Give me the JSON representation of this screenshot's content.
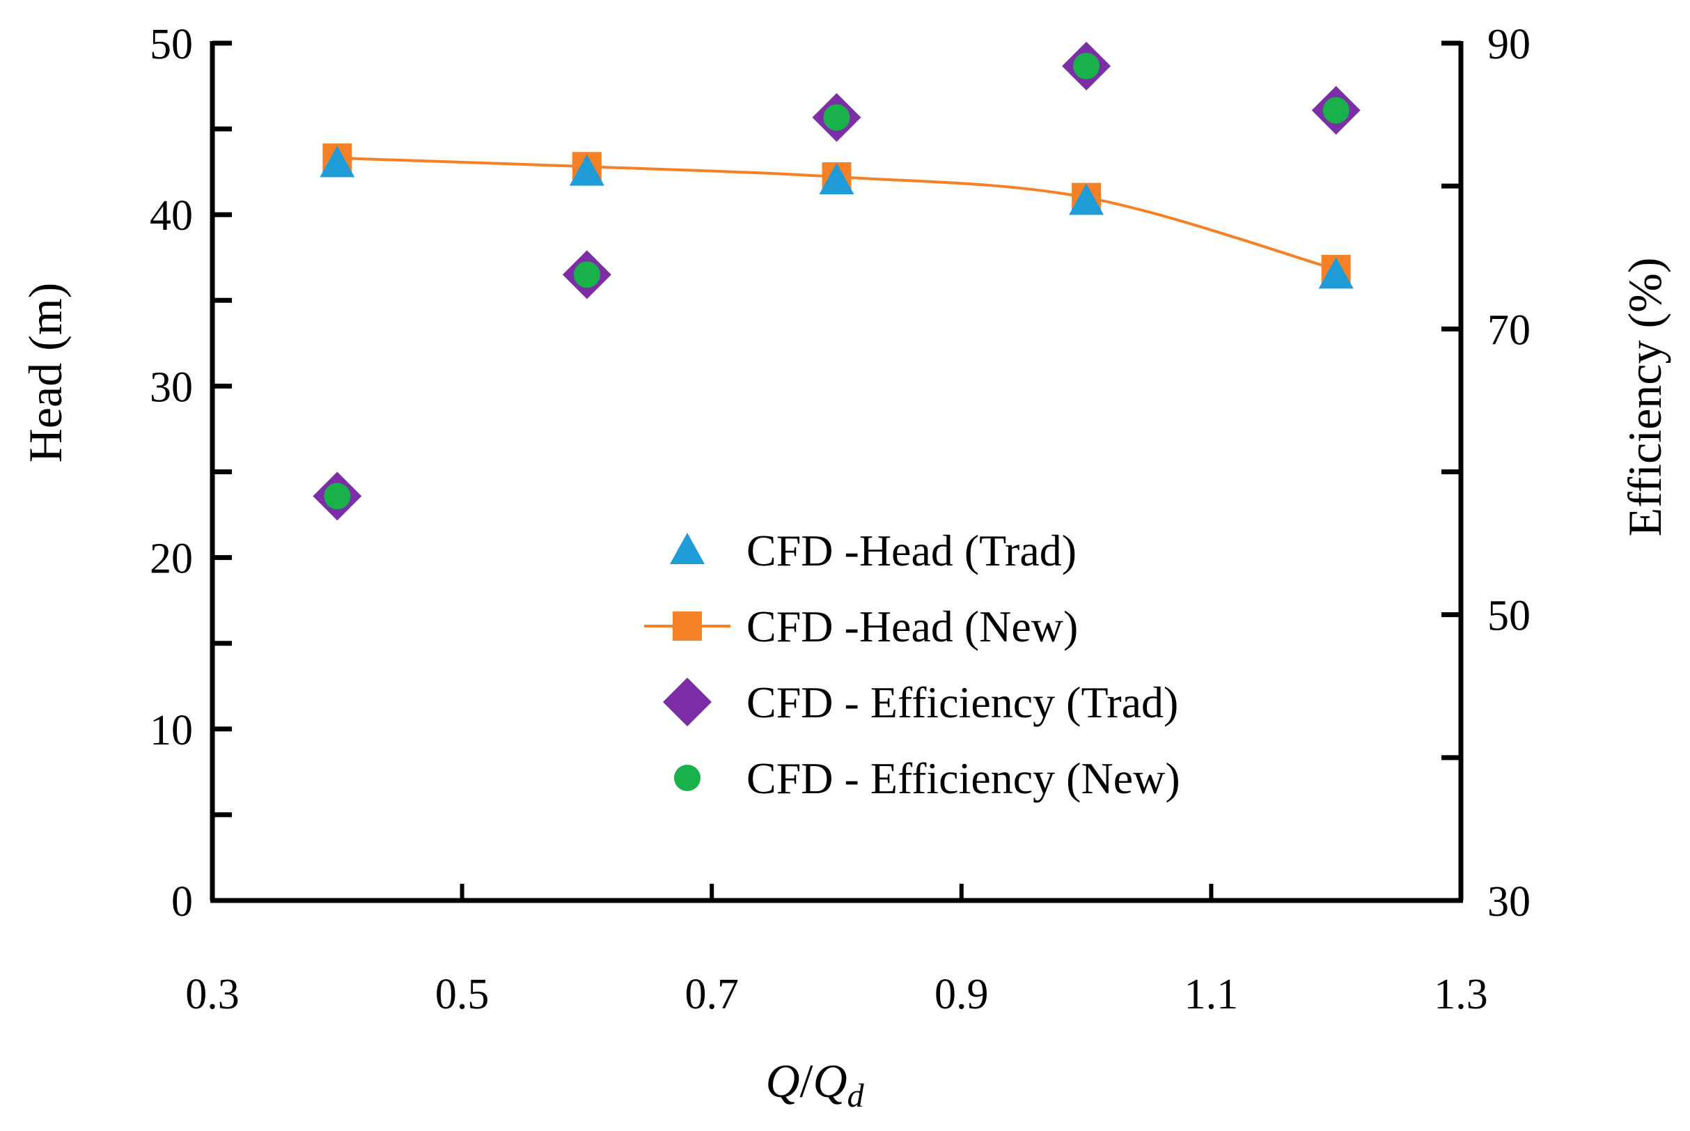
{
  "chart_data": {
    "type": "scatter",
    "title": "",
    "x": [
      0.4,
      0.6,
      0.8,
      1.0,
      1.2
    ],
    "xlim": [
      0.3,
      1.3
    ],
    "x_ticks": [
      "0.3",
      "0.5",
      "0.7",
      "0.9",
      "1.1",
      "1.3"
    ],
    "xlabel": {
      "q": "Q",
      "slash": "/",
      "q2": "Q",
      "sub": "d"
    },
    "y_left": {
      "label": "Head (m)",
      "lim": [
        0,
        50
      ],
      "ticks": [
        "0",
        "10",
        "20",
        "30",
        "40",
        "50"
      ]
    },
    "y_right": {
      "label": "Efficiency (%)",
      "lim": [
        30,
        90
      ],
      "ticks": [
        "30",
        "50",
        "70",
        "90"
      ]
    },
    "series": [
      {
        "name": "CFD -Head (Trad)",
        "axis": "left",
        "marker": "triangle",
        "color": "#1f9bd7",
        "line": false,
        "values": [
          43.0,
          42.5,
          42.0,
          40.8,
          36.5
        ]
      },
      {
        "name": "CFD -Head (New)",
        "axis": "left",
        "marker": "square",
        "color": "#f58025",
        "line": true,
        "values": [
          43.3,
          42.8,
          42.2,
          41.0,
          36.8
        ]
      },
      {
        "name": "CFD - Efficiency (Trad)",
        "axis": "right",
        "marker": "diamond",
        "color": "#7b2ea6",
        "line": false,
        "values": [
          58.3,
          73.8,
          84.8,
          88.4,
          85.3
        ]
      },
      {
        "name": "CFD - Efficiency (New)",
        "axis": "right",
        "marker": "circle",
        "color": "#18b14a",
        "line": false,
        "values": [
          58.3,
          73.8,
          84.8,
          88.4,
          85.3
        ]
      }
    ],
    "legend_position": "center-right",
    "grid": false
  }
}
